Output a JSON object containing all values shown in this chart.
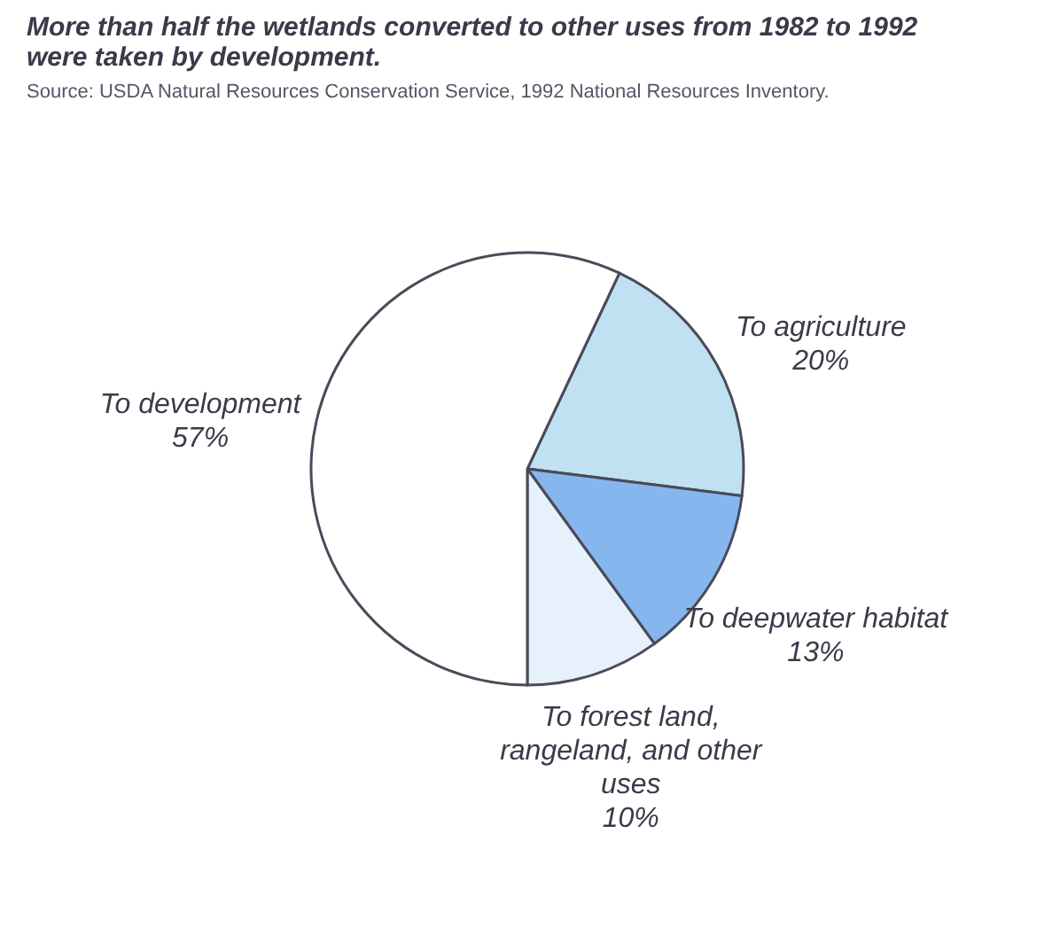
{
  "chart_data": {
    "type": "pie",
    "title": "More than half the wetlands converted to other uses from 1982 to 1992 were taken by development.",
    "annotations": [
      "Source: USDA Natural Resources Conservation Service, 1992 National Resources Inventory."
    ],
    "categories": [
      "To agriculture",
      "To deepwater habitat",
      "To forest land, rangeland, and other uses",
      "To development"
    ],
    "values": [
      20,
      13,
      10,
      57
    ],
    "colors": [
      "#bfe1f2",
      "#86b6ee",
      "#e6f1fb",
      "#ffffff"
    ],
    "value_labels": [
      "20%",
      "13%",
      "10%",
      "57%"
    ],
    "legend": false
  }
}
